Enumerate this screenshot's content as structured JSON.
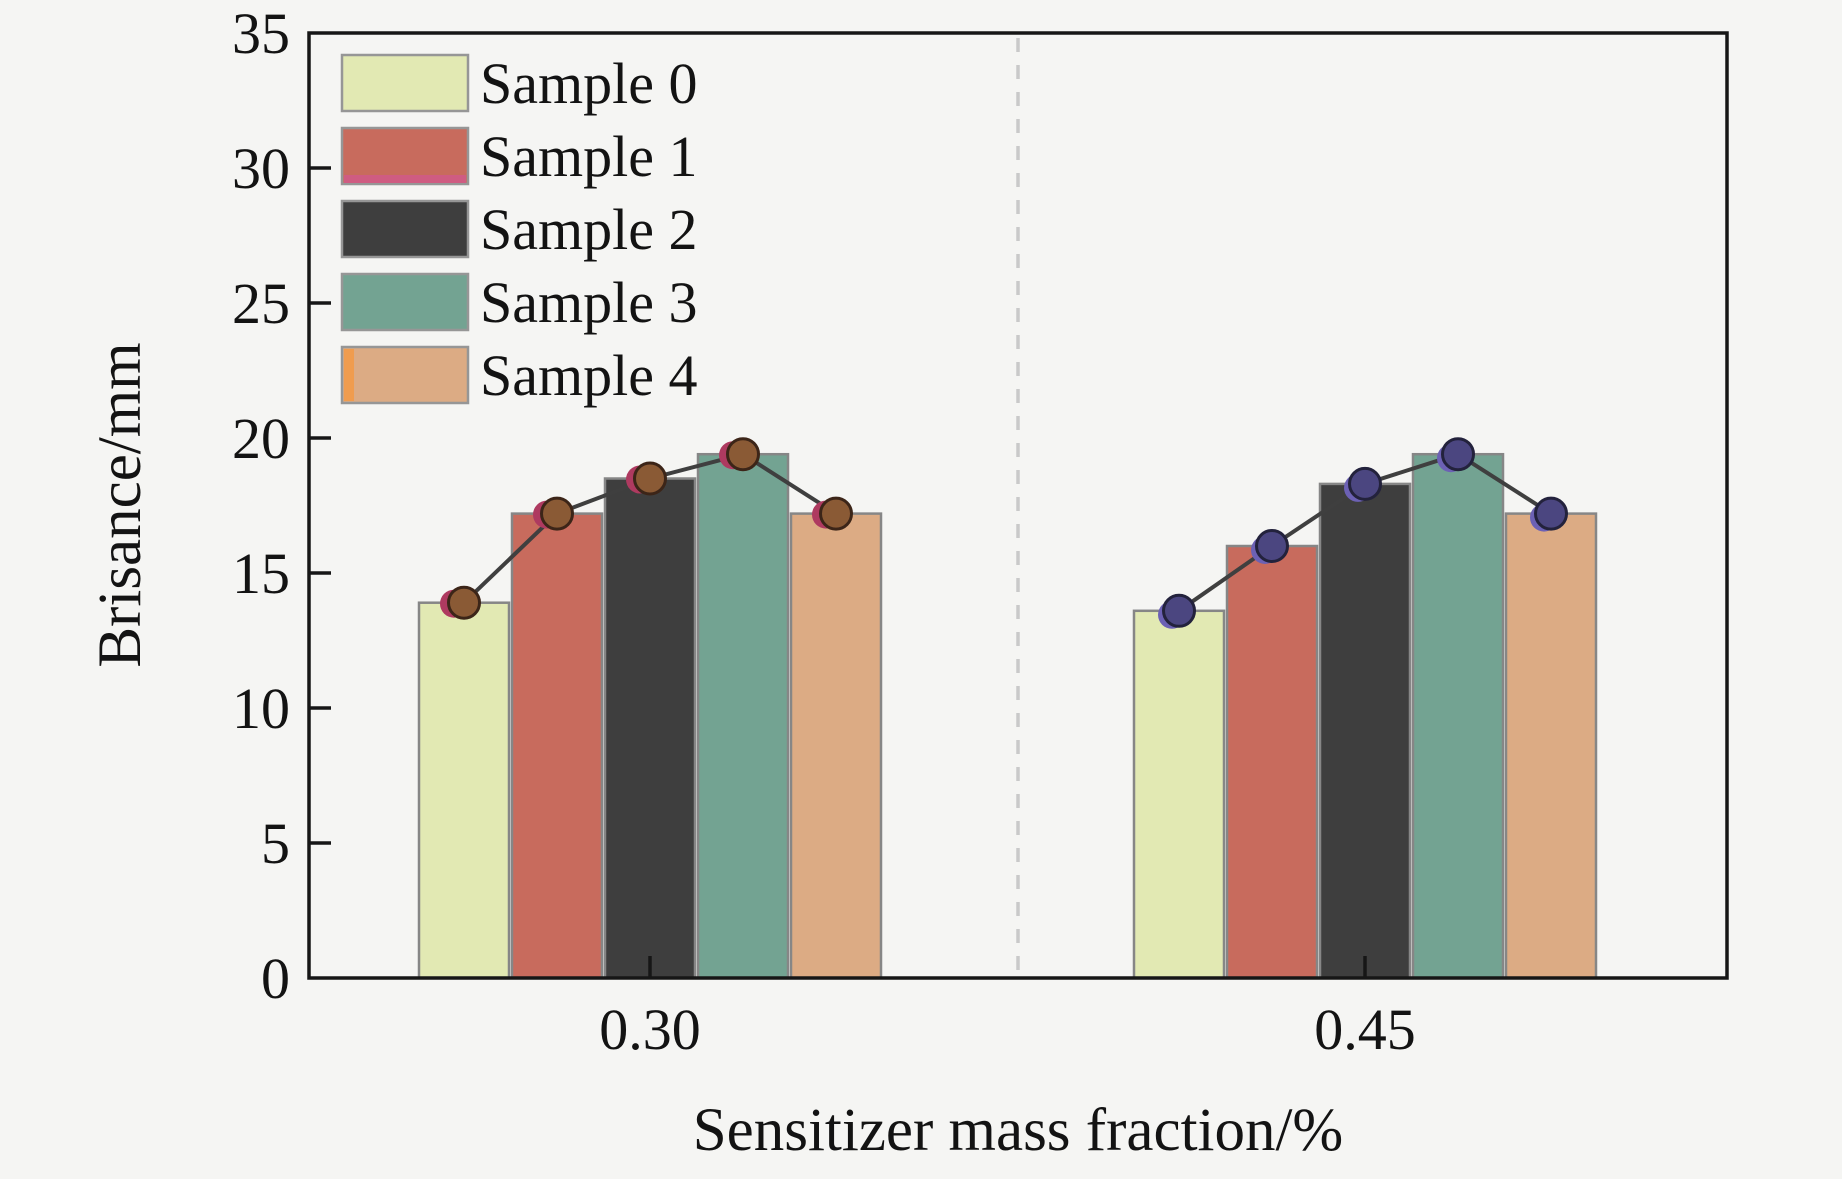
{
  "chart_data": {
    "type": "bar",
    "title": "",
    "xlabel": "Sensitizer mass fraction/%",
    "ylabel": "Brisance/mm",
    "categories": [
      "0.30",
      "0.45"
    ],
    "series": [
      {
        "name": "Sample 0",
        "color": "#e2e9b3",
        "values": [
          13.9,
          13.6
        ]
      },
      {
        "name": "Sample 1",
        "color": "#c86b5d",
        "values": [
          17.2,
          16.0
        ],
        "legend_accent": {
          "side": "bottom",
          "color": "#cf5c82"
        }
      },
      {
        "name": "Sample 2",
        "color": "#3e3e3e",
        "values": [
          18.5,
          18.3
        ]
      },
      {
        "name": "Sample 3",
        "color": "#73a392",
        "values": [
          19.4,
          19.4
        ]
      },
      {
        "name": "Sample 4",
        "color": "#dcab84",
        "values": [
          17.2,
          17.2
        ],
        "legend_accent": {
          "side": "left",
          "color": "#f09c4e"
        }
      }
    ],
    "line_overlay": {
      "style": "polyline with circular markers tracing bar-top values within each category group",
      "line_color": "#3f3f3f",
      "marker_styles": [
        {
          "category": "0.30",
          "fill": "#8a5a35",
          "accent": "#ae3a60",
          "edge": "#3c2518"
        },
        {
          "category": "0.45",
          "fill": "#4b4680",
          "accent": "#6c61b4",
          "edge": "#23223c"
        }
      ]
    },
    "ylim": [
      0,
      35
    ],
    "yticks": [
      0,
      5,
      10,
      15,
      20,
      25,
      30,
      35
    ],
    "legend": {
      "position": "upper-left"
    },
    "divider": {
      "style": "dashed",
      "color": "#c9c9c9",
      "between": [
        "0.30",
        "0.45"
      ]
    },
    "grid": false,
    "bar_edge_color": "#868686",
    "frame_color": "#161616",
    "background": "#f5f5f3",
    "text_color": "#131313"
  }
}
